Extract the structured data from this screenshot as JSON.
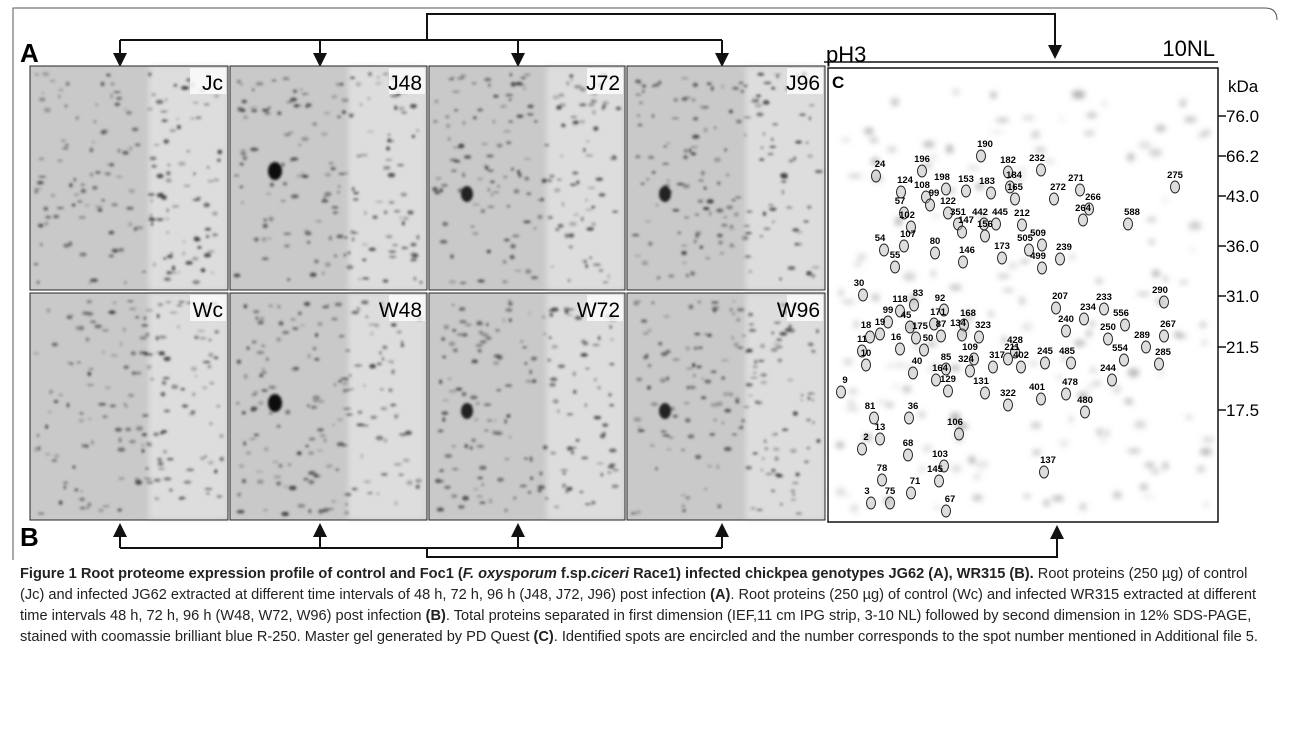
{
  "panel_labels": {
    "a": "A",
    "b": "B",
    "c": "C"
  },
  "gels": [
    "Jc",
    "J48",
    "J72",
    "J96",
    "Wc",
    "W48",
    "W72",
    "W96"
  ],
  "master_gel": {
    "ph_low": "pH3",
    "ph_high": "10NL",
    "mw_unit": "kDa",
    "mw_ticks": [
      "76.0",
      "66.2",
      "43.0",
      "36.0",
      "31.0",
      "21.5",
      "17.5"
    ],
    "spots": [
      "190",
      "182",
      "232",
      "24",
      "196",
      "198",
      "184",
      "153",
      "183",
      "124",
      "165",
      "271",
      "272",
      "275",
      "108",
      "99",
      "122",
      "57",
      "266",
      "351",
      "442",
      "445",
      "212",
      "102",
      "588",
      "264",
      "509",
      "147",
      "156",
      "505",
      "107",
      "80",
      "54",
      "146",
      "173",
      "499",
      "239",
      "55",
      "30",
      "83",
      "118",
      "92",
      "207",
      "233",
      "290",
      "234",
      "99",
      "45",
      "171",
      "240",
      "556",
      "168",
      "19",
      "18",
      "175",
      "87",
      "134",
      "323",
      "250",
      "289",
      "267",
      "11",
      "16",
      "50",
      "428",
      "554",
      "285",
      "10",
      "109",
      "211",
      "245",
      "485",
      "40",
      "85",
      "324",
      "317",
      "402",
      "244",
      "164",
      "129",
      "131",
      "9",
      "322",
      "401",
      "478",
      "480",
      "81",
      "36",
      "13",
      "106",
      "2",
      "68",
      "103",
      "137",
      "78",
      "145",
      "71",
      "75",
      "3",
      "67"
    ]
  },
  "caption": [
    {
      "text": "Figure 1 Root proteome expression profile of control and Foc1 (",
      "style": "bold"
    },
    {
      "text": "F. oxysporum",
      "style": "bold-italic"
    },
    {
      "text": " f.sp.",
      "style": "bold"
    },
    {
      "text": "ciceri",
      "style": "bold-italic"
    },
    {
      "text": " Race1) infected chickpea genotypes JG62 (A), WR315 (B).",
      "style": "bold"
    },
    {
      "text": " Root proteins (250 µg) of control (Jc) and infected JG62 extracted at different time intervals of 48 h, 72 h, 96 h (J48, J72, J96) post infection ",
      "style": "normal"
    },
    {
      "text": "(A)",
      "style": "bold"
    },
    {
      "text": ". Root proteins (250 µg) of control (Wc) and infected WR315 extracted at different time intervals 48 h, 72 h, 96 h (W48, W72, W96) post infection ",
      "style": "normal"
    },
    {
      "text": "(B)",
      "style": "bold"
    },
    {
      "text": ". Total proteins separated in first dimension (IEF,11 cm IPG strip, 3-10 NL) followed by second dimension in 12% SDS-PAGE, stained with coomassie brilliant blue R-250. Master gel generated by PD Quest ",
      "style": "normal"
    },
    {
      "text": "(C)",
      "style": "bold"
    },
    {
      "text": ". Identified spots are encircled and the number corresponds to the spot number mentioned in Additional file 5.",
      "style": "normal"
    }
  ]
}
